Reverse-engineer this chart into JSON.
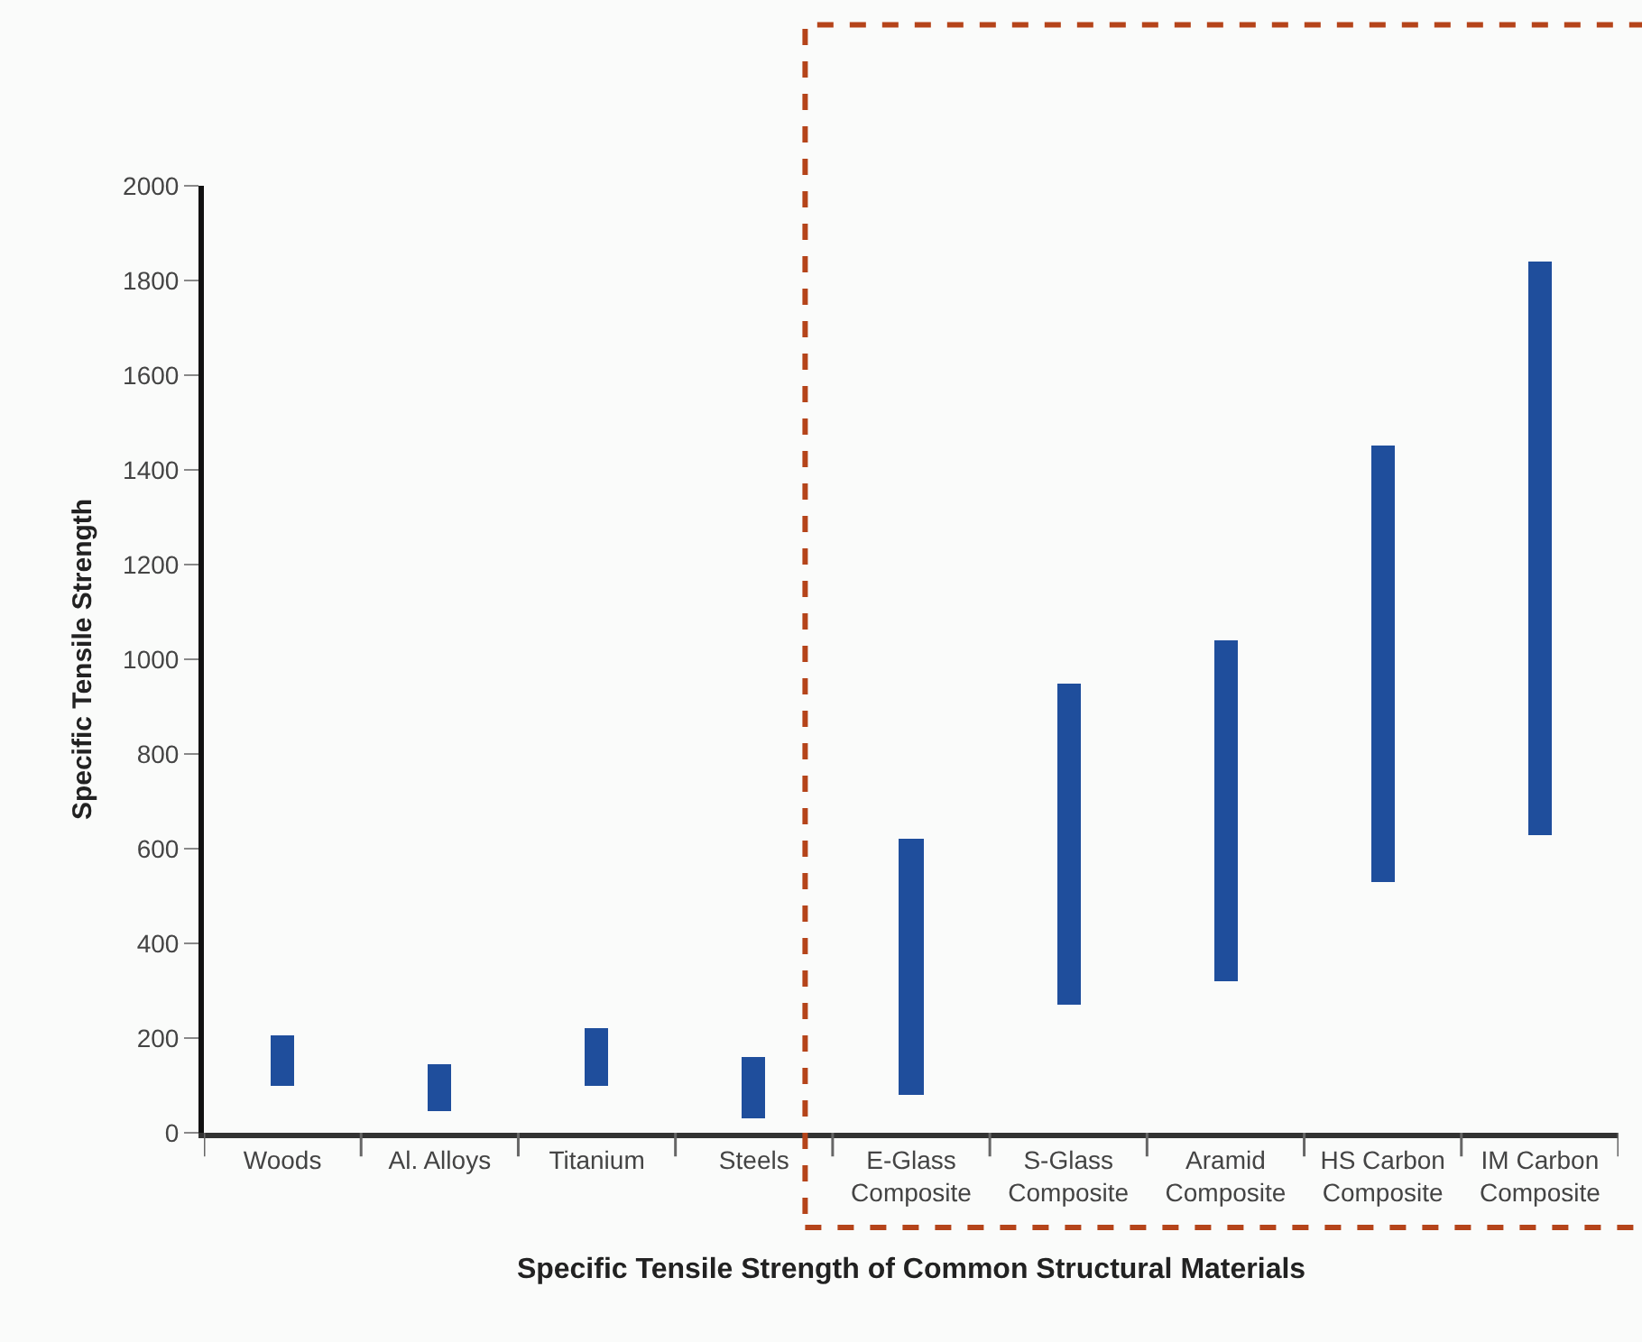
{
  "chart_data": {
    "type": "bar",
    "xlabel": "Specific Tensile Strength of Common Structural Materials",
    "ylabel": "Specific Tensile Strength",
    "categories": [
      "Woods",
      "Al. Alloys",
      "Titanium",
      "Steels",
      "E-Glass\nComposite",
      "S-Glass\nComposite",
      "Aramid\nComposite",
      "HS Carbon\nComposite",
      "IM Carbon\nComposite"
    ],
    "base": [
      100,
      45,
      100,
      30,
      80,
      270,
      320,
      530,
      630
    ],
    "values": [
      105,
      100,
      120,
      130,
      540,
      680,
      720,
      920,
      1210
    ],
    "color": "#1f4e9c",
    "ylim": [
      0,
      2000
    ],
    "yticks": [
      0,
      200,
      400,
      600,
      800,
      1000,
      1200,
      1400,
      1600,
      1800,
      2000
    ],
    "grid": false
  }
}
